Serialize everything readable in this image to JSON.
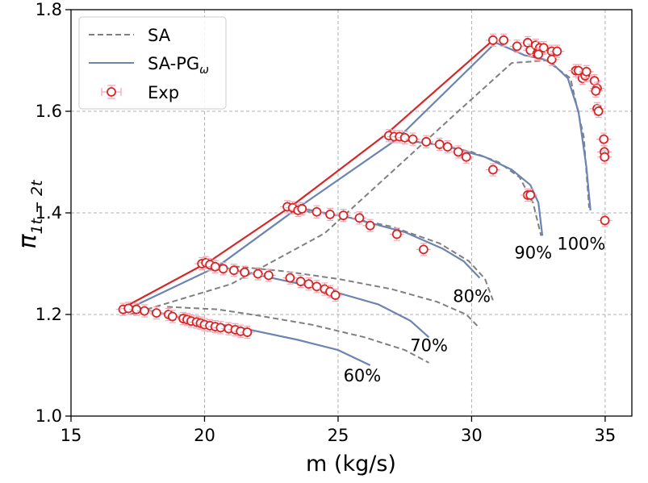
{
  "chart_data": {
    "type": "line",
    "xlabel": "m (kg/s)",
    "ylabel": "π",
    "ylabel_sub": "1t − 2t",
    "xlim": [
      15,
      36
    ],
    "ylim": [
      1.0,
      1.8
    ],
    "xticks": [
      15,
      20,
      25,
      30,
      35
    ],
    "yticks": [
      1.0,
      1.2,
      1.4,
      1.6,
      1.8
    ],
    "xtick_labels": [
      "15",
      "20",
      "25",
      "30",
      "35"
    ],
    "ytick_labels": [
      "1.0",
      "1.2",
      "1.4",
      "1.6",
      "1.8"
    ],
    "grid": true,
    "legend": {
      "position": "top-left",
      "entries": [
        {
          "label": "SA",
          "style": "dashed",
          "color": "#7f7f7f"
        },
        {
          "label": "SA-PG",
          "label_sub": "ω",
          "style": "solid",
          "color": "#6b84b0"
        },
        {
          "label": "Exp",
          "style": "marker",
          "color": "#d62728"
        }
      ]
    },
    "speed_labels": [
      {
        "text": "60%",
        "x": 25.2,
        "y": 1.068
      },
      {
        "text": "70%",
        "x": 27.7,
        "y": 1.128
      },
      {
        "text": "80%",
        "x": 29.3,
        "y": 1.225
      },
      {
        "text": "90%",
        "x": 31.6,
        "y": 1.31
      },
      {
        "text": "100%",
        "x": 33.2,
        "y": 1.328
      }
    ],
    "series": [
      {
        "name": "SA",
        "style": "dashed",
        "color": "#7f7f7f",
        "segments": [
          {
            "x": [
              17.2,
              21,
              24.5,
              27,
              29.5,
              31.5,
              32.8,
              33.7,
              34.2,
              34.4
            ],
            "y": [
              1.2,
              1.26,
              1.36,
              1.48,
              1.6,
              1.695,
              1.7,
              1.665,
              1.55,
              1.41
            ]
          },
          {
            "x": [
              18.6,
              20.5,
              22,
              24,
              26,
              27.5,
              28.4
            ],
            "y": [
              1.215,
              1.21,
              1.198,
              1.18,
              1.155,
              1.13,
              1.105
            ]
          },
          {
            "x": [
              21.1,
              23,
              25,
              27,
              28.7,
              29.8,
              30.3
            ],
            "y": [
              1.295,
              1.285,
              1.27,
              1.25,
              1.225,
              1.2,
              1.173
            ]
          },
          {
            "x": [
              23.5,
              25,
              27,
              28.8,
              29.9,
              30.5,
              30.8
            ],
            "y": [
              1.405,
              1.395,
              1.373,
              1.34,
              1.305,
              1.27,
              1.228
            ]
          },
          {
            "x": [
              27.0,
              28.5,
              30,
              31,
              31.8,
              32.3,
              32.6
            ],
            "y": [
              1.545,
              1.537,
              1.52,
              1.5,
              1.47,
              1.42,
              1.355
            ]
          }
        ]
      },
      {
        "name": "SA-PG",
        "style": "solid",
        "color": "#6b84b0",
        "segments": [
          {
            "x": [
              17.3,
              20.5,
              23.5,
              27.2,
              30.9,
              32.0,
              32.9,
              33.6,
              34.0,
              34.3,
              34.45
            ],
            "y": [
              1.215,
              1.295,
              1.41,
              1.545,
              1.735,
              1.71,
              1.7,
              1.665,
              1.6,
              1.49,
              1.405
            ]
          },
          {
            "x": [
              17.3,
              19.5,
              21.5,
              23.5,
              25.0,
              26.2
            ],
            "y": [
              1.215,
              1.19,
              1.172,
              1.15,
              1.13,
              1.1
            ]
          },
          {
            "x": [
              20.5,
              22.5,
              24.5,
              26.5,
              27.7,
              28.4
            ],
            "y": [
              1.295,
              1.272,
              1.25,
              1.22,
              1.188,
              1.155
            ]
          },
          {
            "x": [
              23.5,
              25.5,
              27.5,
              28.9,
              29.7,
              30.3
            ],
            "y": [
              1.41,
              1.39,
              1.362,
              1.33,
              1.305,
              1.272
            ]
          },
          {
            "x": [
              27.2,
              29,
              30.5,
              31.5,
              32.2,
              32.5,
              32.65
            ],
            "y": [
              1.545,
              1.532,
              1.51,
              1.485,
              1.455,
              1.42,
              1.355
            ]
          }
        ]
      },
      {
        "name": "",
        "style": "solid",
        "color": "#d62728",
        "segments": [
          {
            "x": [
              17.2,
              20.2,
              23.3,
              26.8,
              30.8
            ],
            "y": [
              1.22,
              1.305,
              1.415,
              1.555,
              1.74
            ]
          }
        ]
      },
      {
        "name": "Exp",
        "style": "marker",
        "color": "#d62728",
        "points": {
          "x": [
            16.95,
            17.15,
            17.45,
            17.75,
            18.2,
            18.65,
            18.8,
            19.2,
            19.35,
            19.5,
            19.7,
            19.85,
            20.0,
            20.2,
            20.4,
            20.6,
            20.9,
            21.15,
            21.35,
            21.6,
            19.9,
            20.05,
            20.2,
            20.4,
            20.7,
            21.1,
            21.5,
            22.0,
            22.4,
            23.2,
            23.6,
            23.9,
            24.2,
            24.5,
            24.7,
            24.9,
            23.1,
            23.3,
            23.5,
            23.65,
            24.2,
            24.7,
            25.2,
            25.8,
            26.2,
            27.2,
            28.2,
            26.9,
            27.1,
            27.3,
            27.5,
            27.8,
            28.3,
            28.8,
            29.1,
            29.5,
            29.8,
            30.8,
            32.1,
            32.2,
            30.8,
            31.2,
            31.7,
            32.1,
            32.2,
            32.4,
            32.45,
            32.55,
            32.7,
            32.5,
            33.0,
            33.0,
            33.2,
            33.9,
            34.0,
            34.15,
            34.25,
            34.3,
            34.6,
            34.7,
            34.65,
            34.7,
            34.75,
            34.95,
            34.97,
            34.98,
            34.99
          ],
          "y": [
            1.21,
            1.212,
            1.21,
            1.207,
            1.203,
            1.2,
            1.196,
            1.192,
            1.19,
            1.187,
            1.185,
            1.183,
            1.18,
            1.178,
            1.176,
            1.174,
            1.172,
            1.17,
            1.167,
            1.165,
            1.3,
            1.302,
            1.298,
            1.294,
            1.29,
            1.287,
            1.283,
            1.28,
            1.277,
            1.272,
            1.265,
            1.26,
            1.255,
            1.25,
            1.245,
            1.238,
            1.412,
            1.41,
            1.405,
            1.408,
            1.402,
            1.397,
            1.395,
            1.39,
            1.375,
            1.358,
            1.328,
            1.552,
            1.55,
            1.55,
            1.548,
            1.545,
            1.54,
            1.535,
            1.53,
            1.52,
            1.51,
            1.485,
            1.435,
            1.435,
            1.74,
            1.74,
            1.728,
            1.735,
            1.72,
            1.73,
            1.713,
            1.725,
            1.725,
            1.712,
            1.718,
            1.702,
            1.718,
            1.68,
            1.68,
            1.665,
            1.67,
            1.678,
            1.66,
            1.645,
            1.64,
            1.605,
            1.6,
            1.545,
            1.52,
            1.51,
            1.385
          ],
          "err": 0.012
        }
      }
    ]
  }
}
